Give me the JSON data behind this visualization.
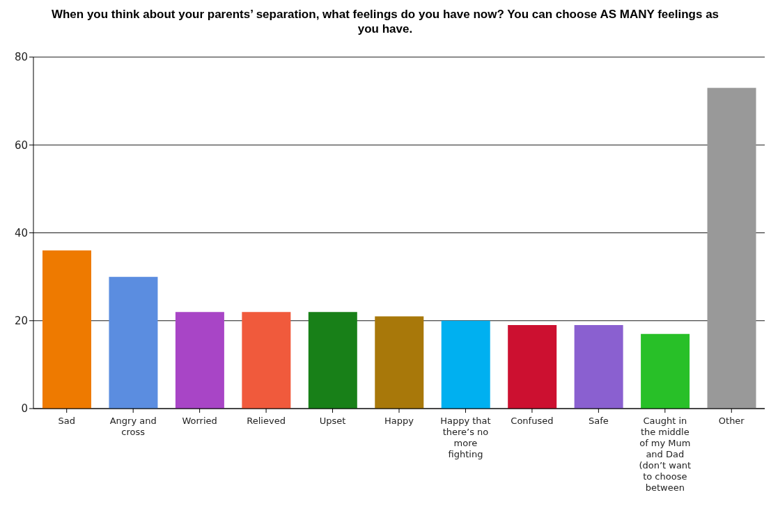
{
  "chart_data": {
    "type": "bar",
    "title": "When you think about your parents’ separation, what feelings do you have now? You can choose AS MANY feelings as you have.",
    "categories": [
      "Sad",
      "Angry and cross",
      "Worried",
      "Relieved",
      "Upset",
      "Happy",
      "Happy that there’s no more fighting",
      "Confused",
      "Safe",
      "Caught in the middle of my Mum and Dad (don’t want to choose between",
      "Other"
    ],
    "values": [
      36,
      30,
      22,
      22,
      22,
      21,
      20,
      19,
      19,
      17,
      73
    ],
    "colors": [
      "#ee7a00",
      "#5b8de0",
      "#a845c6",
      "#f05a3c",
      "#188018",
      "#a8780a",
      "#00b0f0",
      "#cc1030",
      "#8a60d0",
      "#28c028",
      "#999999"
    ],
    "ylim": [
      0,
      80
    ],
    "yticks": [
      0,
      20,
      40,
      60,
      80
    ],
    "grid": "y",
    "legend": false
  }
}
